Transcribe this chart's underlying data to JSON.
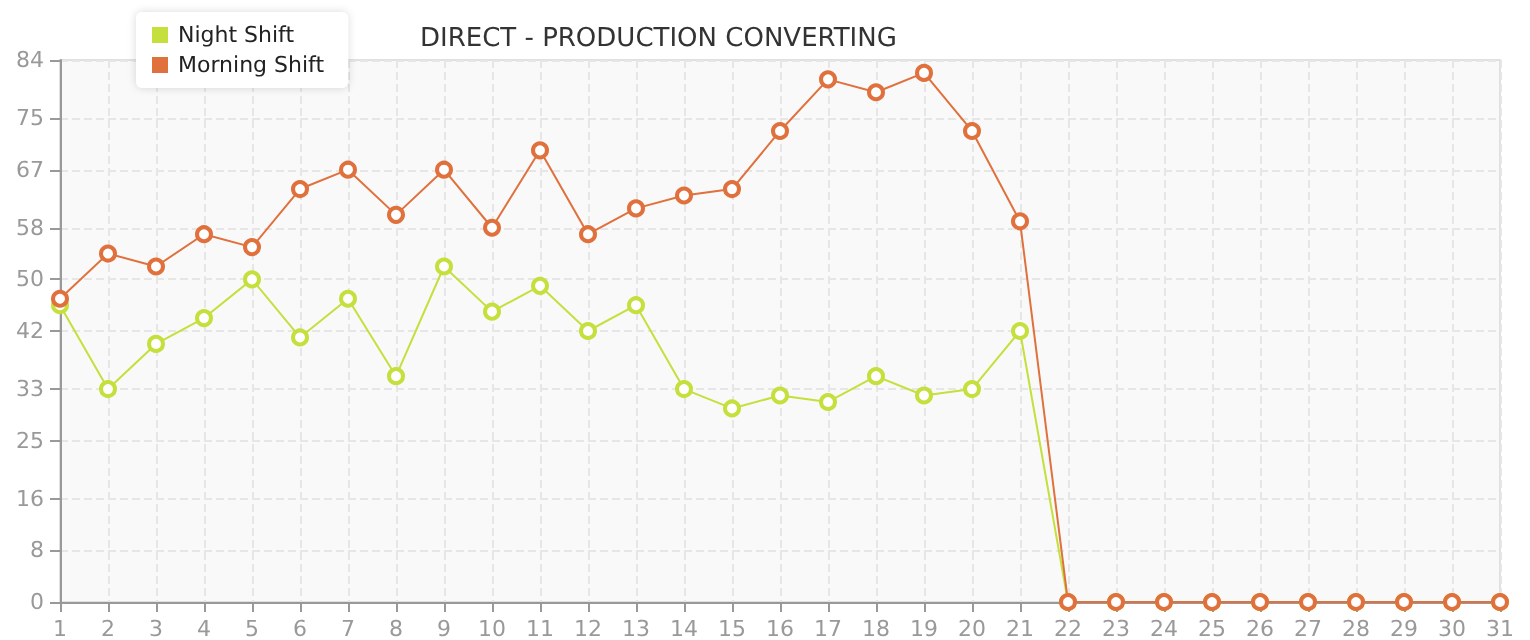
{
  "chart_data": {
    "type": "line",
    "title": "DIRECT - PRODUCTION CONVERTING",
    "x": [
      1,
      2,
      3,
      4,
      5,
      6,
      7,
      8,
      9,
      10,
      11,
      12,
      13,
      14,
      15,
      16,
      17,
      18,
      19,
      20,
      21,
      22,
      23,
      24,
      25,
      26,
      27,
      28,
      29,
      30,
      31
    ],
    "series": [
      {
        "name": "Night Shift",
        "color": "#c5df3c",
        "values": [
          46,
          33,
          40,
          44,
          50,
          41,
          47,
          35,
          52,
          45,
          49,
          42,
          46,
          33,
          30,
          32,
          31,
          35,
          32,
          33,
          42,
          0,
          0,
          0,
          0,
          0,
          0,
          0,
          0,
          0,
          0
        ]
      },
      {
        "name": "Morning Shift",
        "color": "#e0703c",
        "values": [
          47,
          54,
          52,
          57,
          55,
          64,
          67,
          60,
          67,
          58,
          70,
          57,
          61,
          63,
          64,
          73,
          81,
          79,
          82,
          73,
          59,
          0,
          0,
          0,
          0,
          0,
          0,
          0,
          0,
          0,
          0
        ]
      }
    ],
    "xlim": [
      1,
      31
    ],
    "xticks": [
      1,
      2,
      3,
      4,
      5,
      6,
      7,
      8,
      9,
      10,
      11,
      12,
      13,
      14,
      15,
      16,
      17,
      18,
      19,
      20,
      21,
      22,
      23,
      24,
      25,
      26,
      27,
      28,
      29,
      30,
      31
    ],
    "ylim": [
      0,
      84
    ],
    "yticks": [
      0,
      8,
      16,
      25,
      33,
      42,
      50,
      58,
      67,
      75,
      84
    ],
    "grid": true,
    "legend": "top left",
    "marker": "circle",
    "line_style": "solid"
  }
}
